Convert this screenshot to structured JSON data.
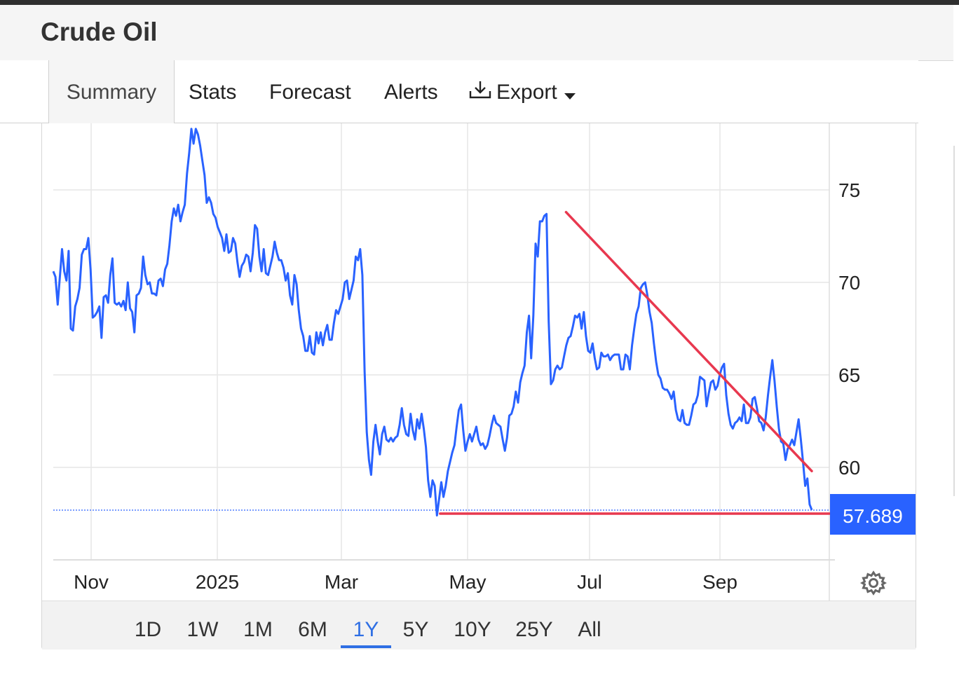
{
  "app": {
    "title": "Crude Oil"
  },
  "tabs": [
    {
      "label": "Summary",
      "active": true
    },
    {
      "label": "Stats"
    },
    {
      "label": "Forecast"
    },
    {
      "label": "Alerts"
    },
    {
      "label": "Export",
      "icon": "download-icon"
    }
  ],
  "ranges": [
    "1D",
    "1W",
    "1M",
    "6M",
    "1Y",
    "5Y",
    "10Y",
    "25Y",
    "All"
  ],
  "active_range": "1Y",
  "colors": {
    "line": "#2962ff",
    "annotation": "#e8384f",
    "price_tag": "#2962ff",
    "active_range": "#2f6fe4",
    "grid": "#e6e6e6"
  },
  "chart_data": {
    "type": "line",
    "series": [
      {
        "values": [
          70.6,
          70.3,
          68.8,
          70.3,
          71.8,
          70.6,
          70.1,
          71.7,
          67.5,
          67.4,
          68.7,
          69.1,
          69.7,
          71.5,
          71.8,
          71.8,
          72.4,
          70.7,
          68.1,
          68.2,
          68.4,
          68.7,
          67.0,
          69.2,
          69.3,
          68.9,
          70.4,
          71.3,
          68.9,
          68.8,
          68.9,
          68.7,
          69.0,
          68.5,
          70.0,
          68.6,
          68.4,
          67.3,
          69.3,
          69.4,
          69.7,
          71.4,
          70.4,
          69.9,
          70.0,
          69.4,
          69.4,
          69.3,
          70.1,
          70.2,
          69.8,
          70.7,
          71.0,
          72.0,
          73.3,
          74.0,
          73.6,
          74.2,
          73.3,
          73.8,
          74.2,
          75.9,
          77.0,
          78.3,
          77.5,
          78.3,
          78.0,
          77.4,
          76.6,
          75.8,
          74.3,
          74.6,
          74.3,
          73.7,
          73.5,
          73.0,
          72.7,
          72.4,
          71.7,
          72.6,
          71.6,
          71.7,
          72.4,
          72.1,
          71.1,
          70.3,
          70.9,
          71.1,
          71.5,
          71.4,
          70.6,
          71.6,
          73.1,
          72.9,
          71.4,
          70.6,
          71.8,
          70.5,
          70.4,
          70.9,
          71.4,
          72.2,
          71.6,
          71.2,
          71.2,
          70.8,
          70.1,
          70.5,
          69.3,
          68.8,
          70.4,
          69.9,
          68.5,
          67.5,
          67.1,
          66.3,
          66.3,
          67.1,
          66.2,
          66.1,
          67.3,
          66.7,
          67.3,
          66.6,
          67.3,
          67.7,
          66.9,
          66.9,
          67.8,
          68.5,
          68.3,
          68.7,
          69.1,
          70.0,
          70.1,
          69.1,
          69.6,
          70.1,
          71.4,
          71.2,
          71.8,
          70.4,
          65.2,
          61.9,
          60.4,
          59.6,
          61.4,
          62.3,
          61.4,
          60.7,
          61.8,
          62.2,
          61.5,
          61.4,
          61.6,
          61.4,
          61.6,
          61.7,
          62.3,
          63.2,
          62.3,
          61.8,
          61.7,
          62.9,
          62.0,
          61.5,
          62.6,
          62.1,
          62.9,
          62.1,
          61.1,
          59.3,
          58.4,
          59.3,
          59.0,
          57.4,
          58.3,
          59.2,
          58.4,
          59.0,
          59.8,
          60.3,
          60.8,
          61.2,
          62.2,
          63.1,
          63.4,
          62.0,
          60.9,
          61.4,
          61.8,
          61.4,
          61.8,
          62.2,
          61.5,
          61.2,
          61.3,
          61.0,
          61.2,
          61.7,
          62.3,
          62.8,
          62.4,
          62.3,
          62.2,
          61.5,
          60.9,
          61.6,
          62.8,
          62.9,
          63.3,
          64.1,
          63.5,
          64.6,
          65.1,
          65.5,
          67.3,
          68.2,
          65.9,
          68.2,
          72.1,
          71.4,
          73.3,
          73.3,
          73.6,
          73.7,
          67.9,
          64.5,
          64.7,
          65.3,
          65.5,
          65.3,
          65.4,
          66.0,
          66.6,
          67.0,
          67.1,
          67.6,
          68.2,
          68.1,
          68.3,
          67.5,
          68.4,
          67.1,
          66.3,
          66.2,
          66.7,
          65.9,
          65.3,
          65.4,
          66.2,
          66.0,
          66.0,
          66.1,
          65.8,
          66.0,
          66.1,
          66.1,
          66.1,
          65.3,
          65.3,
          66.1,
          66.0,
          65.3,
          66.6,
          67.5,
          68.3,
          68.7,
          69.7,
          69.9,
          70.0,
          69.3,
          68.4,
          67.8,
          66.7,
          65.7,
          65.0,
          64.8,
          64.3,
          64.2,
          64.2,
          64.0,
          63.7,
          64.1,
          63.1,
          62.6,
          62.5,
          63.1,
          62.4,
          62.3,
          62.3,
          62.8,
          63.4,
          63.5,
          63.9,
          64.9,
          64.8,
          64.7,
          63.3,
          64.0,
          64.6,
          64.7,
          64.2,
          64.4,
          65.0,
          65.4,
          65.6,
          63.9,
          62.9,
          62.3,
          62.1,
          62.4,
          62.5,
          62.7,
          62.5,
          63.4,
          62.4,
          62.4,
          62.7,
          63.7,
          63.8,
          63.2,
          62.5,
          62.4,
          62.0,
          62.7,
          63.9,
          64.9,
          65.8,
          64.7,
          63.3,
          62.1,
          61.4,
          61.3,
          60.4,
          61.0,
          61.2,
          61.5,
          61.2,
          61.9,
          62.6,
          61.5,
          60.3,
          59.0,
          59.4,
          58.0,
          57.7
        ]
      }
    ],
    "x_tick_labels": [
      "Nov",
      "2025",
      "Mar",
      "May",
      "Jul",
      "Sep"
    ],
    "y_ticks": [
      60,
      65,
      70,
      75
    ],
    "ylim": [
      55,
      78.6
    ],
    "last_price": 57.689,
    "last_price_label": "57.689",
    "grid": true,
    "annotations": [
      {
        "type": "trendline",
        "from": [
          0.676,
          73.8
        ],
        "to": [
          1.0,
          59.8
        ]
      },
      {
        "type": "horizontal",
        "from": [
          0.51,
          57.5
        ],
        "to": [
          1.08,
          57.5
        ]
      }
    ]
  }
}
